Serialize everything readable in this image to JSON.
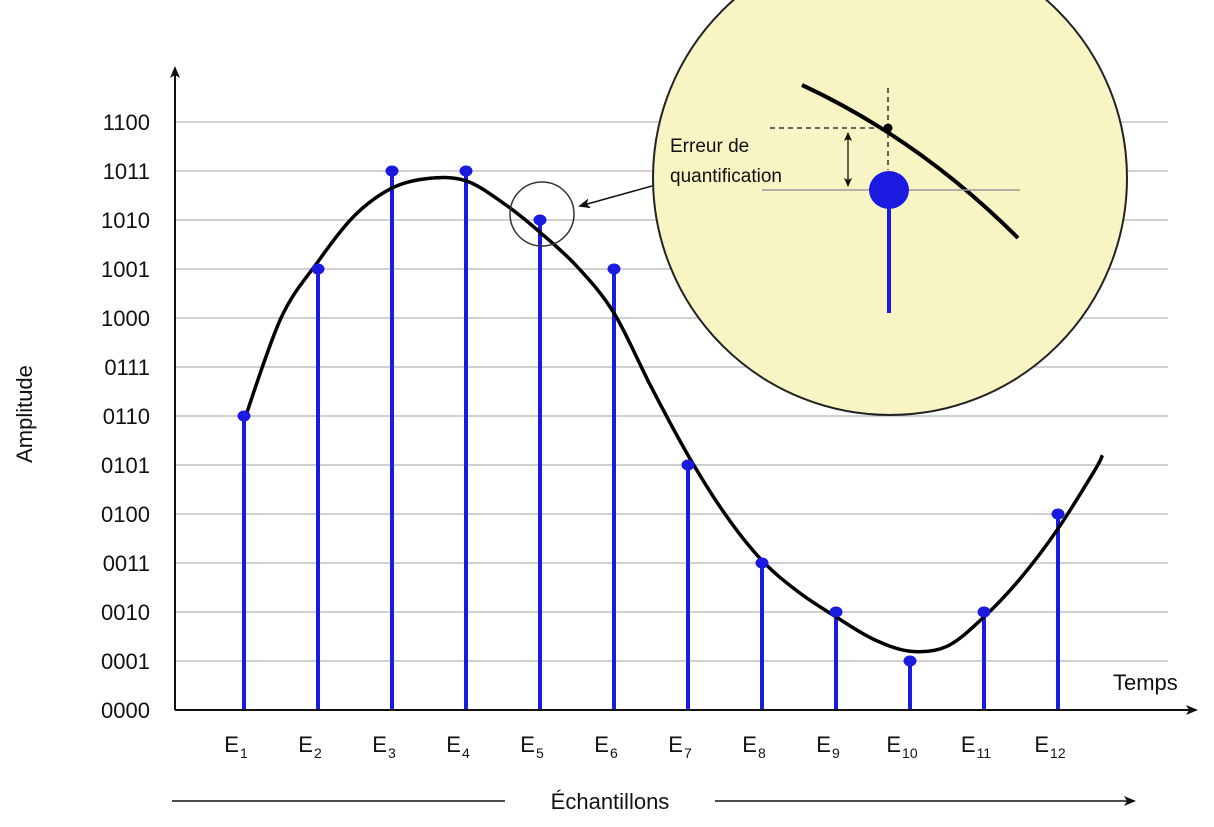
{
  "chart_data": {
    "type": "scatter",
    "title": "",
    "xlabel": "Échantillons",
    "ylabel": "Amplitude",
    "x_axis_end_label": "Temps",
    "y_ticks": [
      "0000",
      "0001",
      "0010",
      "0011",
      "0100",
      "0101",
      "0110",
      "0111",
      "1000",
      "1001",
      "1010",
      "1011",
      "1100"
    ],
    "samples": [
      {
        "base": "E",
        "sub": "1",
        "level": 6
      },
      {
        "base": "E",
        "sub": "2",
        "level": 9
      },
      {
        "base": "E",
        "sub": "3",
        "level": 11
      },
      {
        "base": "E",
        "sub": "4",
        "level": 11
      },
      {
        "base": "E",
        "sub": "5",
        "level": 10
      },
      {
        "base": "E",
        "sub": "6",
        "level": 9
      },
      {
        "base": "E",
        "sub": "7",
        "level": 5
      },
      {
        "base": "E",
        "sub": "8",
        "level": 3
      },
      {
        "base": "E",
        "sub": "9",
        "level": 2
      },
      {
        "base": "E",
        "sub": "10",
        "level": 1
      },
      {
        "base": "E",
        "sub": "11",
        "level": 2
      },
      {
        "base": "E",
        "sub": "12",
        "level": 4
      }
    ],
    "analog_signal": [
      [
        0.0,
        5.9
      ],
      [
        0.5,
        8.0
      ],
      [
        1.0,
        9.15
      ],
      [
        1.5,
        10.1
      ],
      [
        2.0,
        10.65
      ],
      [
        2.5,
        10.85
      ],
      [
        3.0,
        10.8
      ],
      [
        3.5,
        10.35
      ],
      [
        4.0,
        9.75
      ],
      [
        4.5,
        9.05
      ],
      [
        5.0,
        8.1
      ],
      [
        5.5,
        6.6
      ],
      [
        6.0,
        5.2
      ],
      [
        6.5,
        4.0
      ],
      [
        7.0,
        3.05
      ],
      [
        7.5,
        2.4
      ],
      [
        8.0,
        1.9
      ],
      [
        8.5,
        1.45
      ],
      [
        9.0,
        1.2
      ],
      [
        9.5,
        1.3
      ],
      [
        10.0,
        1.9
      ],
      [
        10.5,
        2.7
      ],
      [
        11.0,
        3.7
      ],
      [
        11.5,
        4.9
      ],
      [
        11.6,
        5.2
      ]
    ],
    "grid": true,
    "colors": {
      "samples": "#1a1ae0",
      "signal": "#000000",
      "grid": "#b4b4b4",
      "zoom_fill": "#f8f4c4"
    },
    "annotation": {
      "text_line1": "Erreur de",
      "text_line2": "quantification"
    }
  }
}
